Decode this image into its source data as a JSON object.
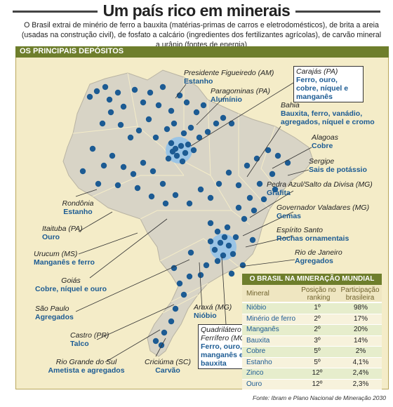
{
  "title": "Um país rico em minerais",
  "intro": "O Brasil extrai de minério de ferro a bauxita (matérias-primas de carros e eletrodomésticos), de brita a areia (usadas na construção civil), de fosfato a calcário (ingredientes dos fertilizantes agrícolas), de carvão mineral a urânio (fontes de energia)",
  "panel_title": "OS PRINCIPAIS DEPÓSITOS",
  "colors": {
    "accent": "#6e7e2c",
    "map": "#d8d4c6",
    "deposit": "#1c5b93",
    "highlight": "#8fc1ea",
    "panel": "#f4ecc8"
  },
  "deposits": [
    {
      "place": "Presidente Figueiredo (AM)",
      "minerals": "Estanho"
    },
    {
      "place": "Paragominas (PA)",
      "minerals": "Alumínio"
    },
    {
      "place": "Carajás (PA)",
      "minerals": "Ferro, ouro, cobre, níquel e manganês"
    },
    {
      "place": "Bahia",
      "minerals": "Bauxita, ferro, vanádio, agregados, níquel e cromo"
    },
    {
      "place": "Alagoas",
      "minerals": "Cobre"
    },
    {
      "place": "Sergipe",
      "minerals": "Sais de potássio"
    },
    {
      "place": "Pedra Azul/Salto da Divisa (MG)",
      "minerals": "Grafita"
    },
    {
      "place": "Governador Valadares (MG)",
      "minerals": "Gemas"
    },
    {
      "place": "Espírito Santo",
      "minerals": "Rochas ornamentais"
    },
    {
      "place": "Rio de Janeiro",
      "minerals": "Agregados"
    },
    {
      "place": "Rondônia",
      "minerals": "Estanho"
    },
    {
      "place": "Itaituba (PA)",
      "minerals": "Ouro"
    },
    {
      "place": "Urucum (MS)",
      "minerals": "Manganês e ferro"
    },
    {
      "place": "Goiás",
      "minerals": "Cobre, níquel e ouro"
    },
    {
      "place": "São Paulo",
      "minerals": "Agregados"
    },
    {
      "place": "Castro (PR)",
      "minerals": "Talco"
    },
    {
      "place": "Rio Grande do Sul",
      "minerals": "Ametista e agregados"
    },
    {
      "place": "Criciúma (SC)",
      "minerals": "Carvão"
    },
    {
      "place": "Araxá (MG)",
      "minerals": "Nióbio"
    },
    {
      "place": "Quadrilátero Ferrífero (MG)",
      "minerals": "Ferro, ouro, manganês e bauxita"
    }
  ],
  "table": {
    "title": "O BRASIL NA MINERAÇÃO MUNDIAL",
    "headers": [
      "Mineral",
      "Posição no ranking",
      "Participação brasileira"
    ],
    "rows": [
      {
        "mineral": "Nióbio",
        "rank": "1º",
        "share": "98%"
      },
      {
        "mineral": "Minério de ferro",
        "rank": "2º",
        "share": "17%"
      },
      {
        "mineral": "Manganês",
        "rank": "2º",
        "share": "20%"
      },
      {
        "mineral": "Bauxita",
        "rank": "3º",
        "share": "14%"
      },
      {
        "mineral": "Cobre",
        "rank": "5º",
        "share": "2%"
      },
      {
        "mineral": "Estanho",
        "rank": "5º",
        "share": "4,1%"
      },
      {
        "mineral": "Zinco",
        "rank": "12º",
        "share": "2,4%"
      },
      {
        "mineral": "Ouro",
        "rank": "12º",
        "share": "2,3%"
      }
    ]
  },
  "source": "Fonte: Ibram e Plano Nacional de Mineração 2030"
}
